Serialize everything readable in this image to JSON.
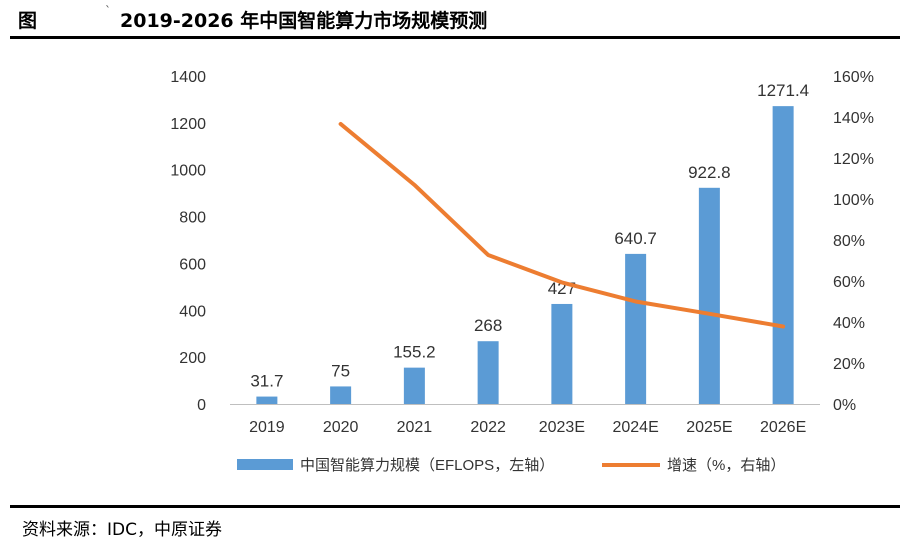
{
  "header": {
    "figure_label": "图",
    "tick_mark": "`",
    "title": "2019-2026 年中国智能算力市场规模预测"
  },
  "footer": {
    "source": "资料来源：IDC，中原证券"
  },
  "chart_data": {
    "type": "bar",
    "title": "2019-2026 年中国智能算力市场规模预测",
    "categories": [
      "2019",
      "2020",
      "2021",
      "2022",
      "2023E",
      "2024E",
      "2025E",
      "2026E"
    ],
    "series": [
      {
        "name": "中国智能算力规模（EFLOPS，左轴）",
        "type": "bar",
        "axis": "left",
        "color": "#5B9BD5",
        "values": [
          31.7,
          75,
          155.2,
          268,
          427,
          640.7,
          922.8,
          1271.4
        ],
        "labels": [
          "31.7",
          "75",
          "155.2",
          "268",
          "427",
          "640.7",
          "922.8",
          "1271.4"
        ]
      },
      {
        "name": "增速（%，右轴）",
        "type": "line",
        "axis": "right",
        "color": "#ED7D31",
        "values": [
          null,
          136.6,
          106.9,
          72.7,
          59.3,
          50.0,
          44.0,
          37.8
        ]
      }
    ],
    "y_left": {
      "min": 0,
      "max": 1400,
      "ticks": [
        0,
        200,
        400,
        600,
        800,
        1000,
        1200,
        1400
      ],
      "tick_labels": [
        "0",
        "200",
        "400",
        "600",
        "800",
        "1000",
        "1200",
        "1400"
      ]
    },
    "y_right": {
      "min": 0,
      "max": 160,
      "ticks": [
        0,
        20,
        40,
        60,
        80,
        100,
        120,
        140,
        160
      ],
      "tick_labels": [
        "0%",
        "20%",
        "40%",
        "60%",
        "80%",
        "100%",
        "120%",
        "140%",
        "160%"
      ]
    },
    "grid": false,
    "legend_position": "bottom"
  }
}
